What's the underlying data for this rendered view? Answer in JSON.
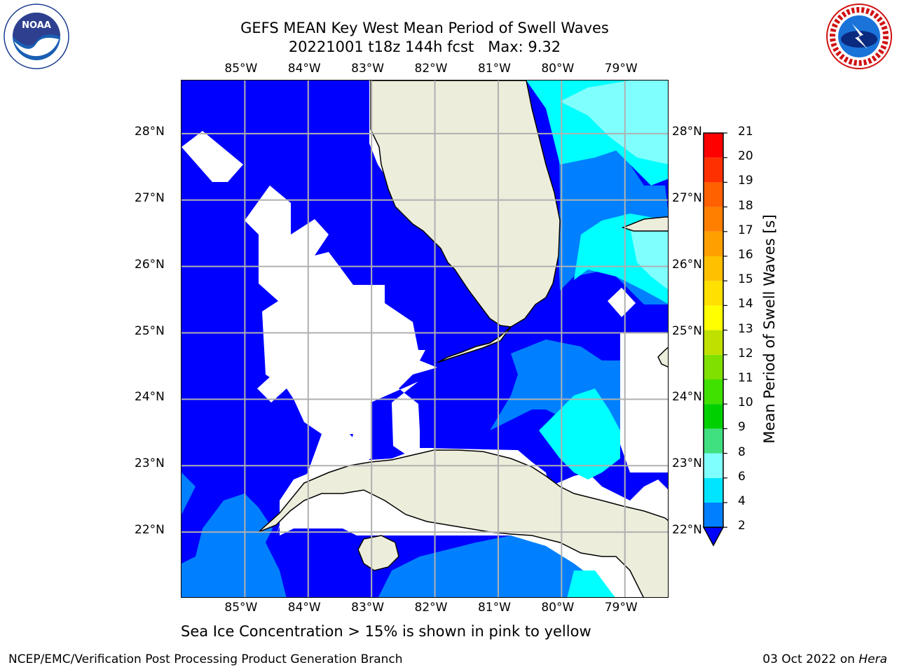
{
  "header": {
    "title_line1": "GEFS MEAN Key West Mean Period of Swell Waves",
    "title_line2": "20221001 t18z 144h fcst   Max: 9.32"
  },
  "logos": {
    "left": {
      "icon": "noaa-logo",
      "text": "NOAA",
      "ring_text": "NATIONAL OCEANIC AND ATMOSPHERIC ADMINISTRATION · U.S. DEPARTMENT OF COMMERCE"
    },
    "right": {
      "icon": "nws-logo",
      "ring_text": "NATIONAL WEATHER SERVICE"
    }
  },
  "chart_data": {
    "type": "heatmap",
    "title": "GEFS MEAN Key West Mean Period of Swell Waves",
    "lon_ticks": [
      "85°W",
      "84°W",
      "83°W",
      "82°W",
      "81°W",
      "80°W",
      "79°W"
    ],
    "lat_ticks": [
      "28°N",
      "27°N",
      "26°N",
      "25°N",
      "24°N",
      "23°N",
      "22°N"
    ],
    "lon_range": [
      -86.0,
      -78.3
    ],
    "lat_range": [
      21.0,
      28.8
    ],
    "grid": true,
    "colorbar": {
      "label": "Mean Period of Swell Waves [s]",
      "ticks": [
        "2",
        "4",
        "6",
        "8",
        "9",
        "10",
        "11",
        "12",
        "13",
        "14",
        "15",
        "16",
        "17",
        "18",
        "19",
        "20",
        "21"
      ],
      "colors": [
        "#0000ff",
        "#0080ff",
        "#00e5ff",
        "#80ffff",
        "#40e080",
        "#00d000",
        "#40e000",
        "#80e000",
        "#c0e000",
        "#ffff00",
        "#ffe000",
        "#ffc000",
        "#ffa000",
        "#ff8000",
        "#ff6000",
        "#ff3000",
        "#ff0000"
      ],
      "placement": "right"
    },
    "max_value": 9.32
  },
  "map_colors": {
    "deep": "#0000ff",
    "mid": "#0080ff",
    "cyan": "#00ffff",
    "lightcyan": "#80ffff",
    "land": "#ededdc",
    "nodata": "#ffffff"
  },
  "caption": "Sea Ice Concentration > 15% is shown in pink to yellow",
  "footer": {
    "left": "NCEP/EMC/Verification Post Processing Product Generation Branch",
    "right_prefix": "03 Oct 2022 on ",
    "right_host": "Hera"
  }
}
